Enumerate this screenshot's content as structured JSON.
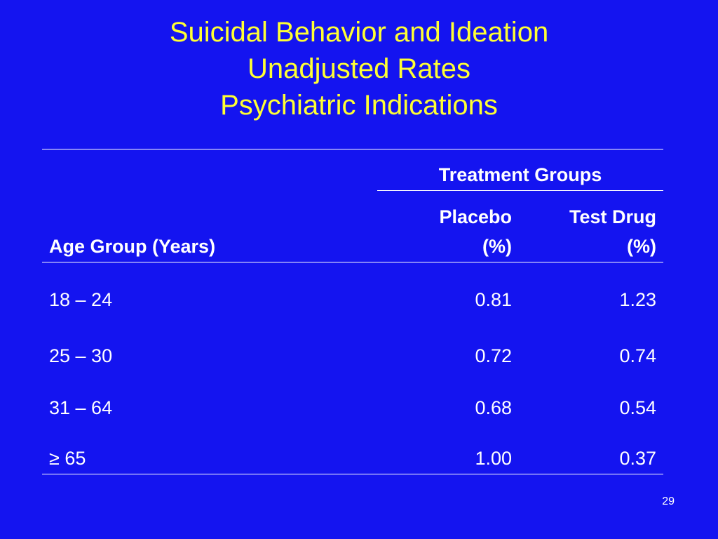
{
  "slide": {
    "title_lines": [
      "Suicidal Behavior and Ideation",
      "Unadjusted Rates",
      "Psychiatric Indications"
    ],
    "page_number": "29"
  },
  "table": {
    "group_header": "Treatment Groups",
    "col_age_header": "Age Group (Years)",
    "col_placebo_header": [
      "Placebo",
      "(%)"
    ],
    "col_drug_header": [
      "Test Drug",
      "(%)"
    ],
    "rows": [
      {
        "age": "18 – 24",
        "placebo": "0.81",
        "drug": "1.23"
      },
      {
        "age": "25 – 30",
        "placebo": "0.72",
        "drug": "0.74"
      },
      {
        "age": "31 – 64",
        "placebo": "0.68",
        "drug": "0.54"
      },
      {
        "age": "≥ 65",
        "placebo": "1.00",
        "drug": "0.37"
      }
    ]
  },
  "colors": {
    "background": "#1414f0",
    "title": "#ffff33",
    "text": "#ffffff"
  }
}
